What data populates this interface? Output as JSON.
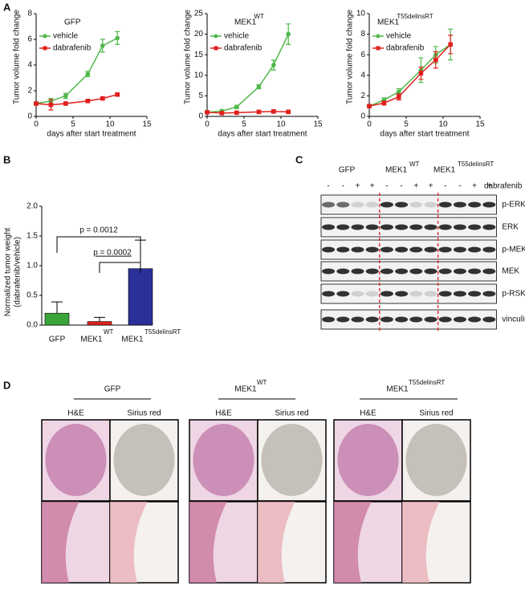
{
  "panel_labels": [
    "A",
    "B",
    "C",
    "D"
  ],
  "chart_data": [
    {
      "type": "line",
      "title": "GFP",
      "xlabel": "days after start treatment",
      "ylabel": "Tumor volume fold change",
      "x": [
        0,
        2,
        4,
        7,
        9,
        11
      ],
      "xlim": [
        0,
        15
      ],
      "xticks": [
        0,
        5,
        10,
        15
      ],
      "ylim": [
        0,
        8
      ],
      "yticks": [
        0,
        2,
        4,
        6,
        8
      ],
      "series": [
        {
          "name": "vehicle",
          "color": "#4fb848",
          "marker": "circle",
          "values": [
            1,
            1.2,
            1.6,
            3.3,
            5.5,
            6.1
          ],
          "errors": [
            0.1,
            0.2,
            0.2,
            0.2,
            0.5,
            0.5
          ]
        },
        {
          "name": "dabrafenib",
          "color": "#e0201e",
          "marker": "square",
          "values": [
            1,
            0.9,
            1.0,
            1.2,
            1.4,
            1.7
          ],
          "errors": [
            0.05,
            0.4,
            0.1,
            0.1,
            0.1,
            0.1
          ]
        }
      ]
    },
    {
      "type": "line",
      "title": "MEK1",
      "title_superscript": "WT",
      "xlabel": "days after start treatment",
      "ylabel": "Tumor volume fold change",
      "x": [
        0,
        2,
        4,
        7,
        9,
        11
      ],
      "xlim": [
        0,
        15
      ],
      "xticks": [
        0,
        5,
        10,
        15
      ],
      "ylim": [
        0,
        25
      ],
      "yticks": [
        0,
        5,
        10,
        15,
        20,
        25
      ],
      "series": [
        {
          "name": "vehicle",
          "color": "#4fb848",
          "marker": "circle",
          "values": [
            1,
            1.3,
            2.3,
            7.2,
            12.5,
            20
          ],
          "errors": [
            0.2,
            0.3,
            0.4,
            0.5,
            1.2,
            2.5
          ]
        },
        {
          "name": "dabrafenib",
          "color": "#e0201e",
          "marker": "square",
          "values": [
            1,
            0.8,
            0.9,
            1.1,
            1.2,
            1.1
          ],
          "errors": [
            0.1,
            0.1,
            0.1,
            0.1,
            0.2,
            0.2
          ]
        }
      ]
    },
    {
      "type": "line",
      "title": "MEK1",
      "title_superscript": "T55delinsRT",
      "xlabel": "days after start treatment",
      "ylabel": "Tumor volume fold change",
      "x": [
        0,
        2,
        4,
        7,
        9,
        11
      ],
      "xlim": [
        0,
        15
      ],
      "xticks": [
        0,
        5,
        10,
        15
      ],
      "ylim": [
        0,
        10
      ],
      "yticks": [
        0,
        2,
        4,
        6,
        8,
        10
      ],
      "series": [
        {
          "name": "vehicle",
          "color": "#4fb848",
          "marker": "circle",
          "values": [
            1,
            1.6,
            2.4,
            4.5,
            6,
            7
          ],
          "errors": [
            0.1,
            0.2,
            0.3,
            1.2,
            0.8,
            1.5
          ]
        },
        {
          "name": "dabrafenib",
          "color": "#e0201e",
          "marker": "square",
          "values": [
            1,
            1.3,
            1.9,
            4.2,
            5.5,
            7
          ],
          "errors": [
            0.1,
            0.2,
            0.3,
            0.6,
            0.8,
            0.9
          ]
        }
      ]
    },
    {
      "type": "bar",
      "ylabel": [
        "Normalized tumor weight",
        "(dabrafenib/vehicle)"
      ],
      "categories": [
        "GFP",
        "MEK1",
        "MEK1"
      ],
      "category_superscripts": [
        null,
        "WT",
        "T55delinsRT"
      ],
      "values": [
        0.2,
        0.06,
        0.95
      ],
      "errors": [
        0.19,
        0.07,
        0.48
      ],
      "colors": [
        "#3aa538",
        "#e0201e",
        "#2b2f9a"
      ],
      "ylim": [
        0,
        2
      ],
      "yticks": [
        {
          "value": 0,
          "label": "0.0"
        },
        {
          "value": 0.5,
          "label": "0.5"
        },
        {
          "value": 1,
          "label": "1.0"
        },
        {
          "value": 1.5,
          "label": "1.5"
        },
        {
          "value": 2,
          "label": "2.0"
        }
      ],
      "annotations": [
        "p = 0.0012",
        "p = 0.0002"
      ]
    }
  ],
  "blot": {
    "groups": [
      {
        "label": "GFP"
      },
      {
        "label": "MEK1",
        "superscript": "WT"
      },
      {
        "label": "MEK1",
        "superscript": "T55delinsRT"
      }
    ],
    "treatment": "dabrafenib",
    "signs": [
      "-",
      "-",
      "+",
      "+",
      "-",
      "-",
      "+",
      "+",
      "-",
      "-",
      "+",
      "+"
    ],
    "rows": [
      "p-ERK",
      "ERK",
      "p-MEK",
      "MEK",
      "p-RSK",
      "vinculin"
    ]
  },
  "histology": {
    "groups": [
      {
        "label": "GFP"
      },
      {
        "label": "MEK1",
        "superscript": "WT"
      },
      {
        "label": "MEK1",
        "superscript": "T55delinsRT"
      }
    ],
    "columns": [
      "H&E",
      "Sirius red"
    ]
  }
}
